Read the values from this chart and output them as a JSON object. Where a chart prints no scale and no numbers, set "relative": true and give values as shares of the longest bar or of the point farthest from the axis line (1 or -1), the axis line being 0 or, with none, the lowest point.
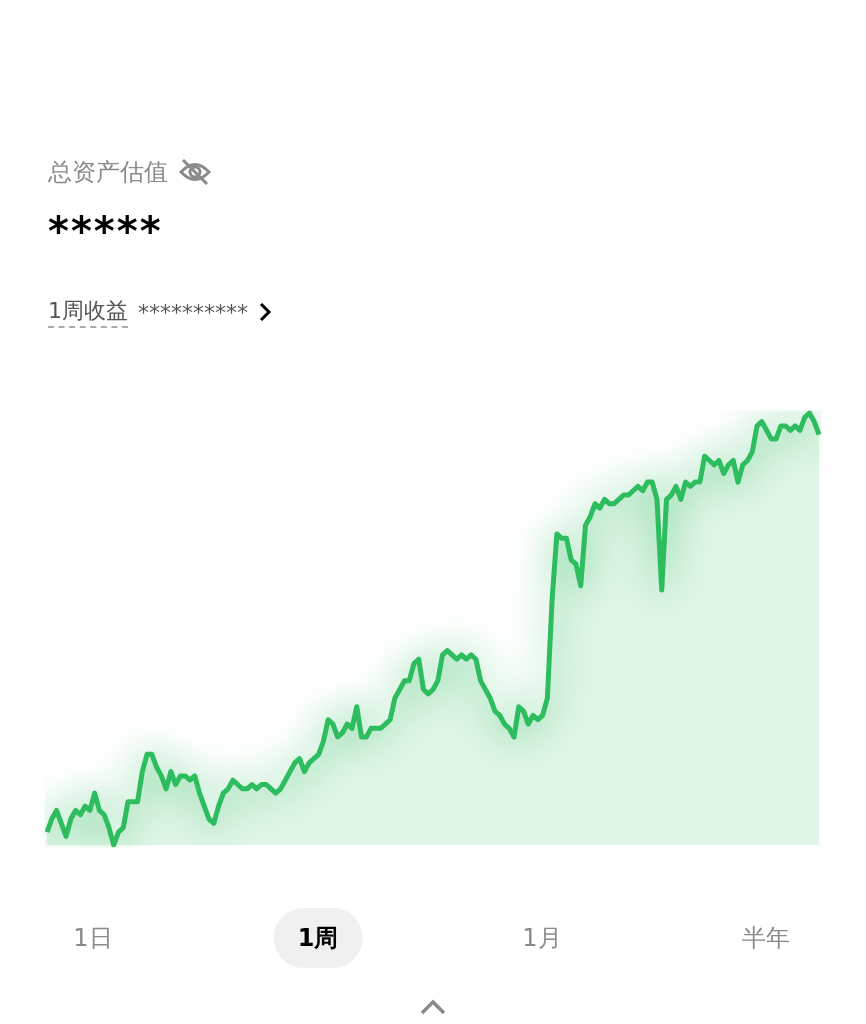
{
  "chart_data": {
    "type": "area",
    "relative": true,
    "title": "总资产估值",
    "subtitle": "*****",
    "annotations": [
      "1周收益 **********",
      "1日",
      "1周",
      "1月",
      "半年"
    ],
    "categories": [
      null,
      null,
      null,
      null,
      null,
      null,
      null,
      null,
      null,
      null,
      null,
      null,
      null,
      null,
      null,
      null,
      null,
      null,
      null,
      null,
      null,
      null,
      null,
      null,
      null,
      null,
      null,
      null,
      null,
      null,
      null,
      null,
      null,
      null,
      null,
      null,
      null,
      null,
      null,
      null,
      null,
      null,
      null,
      null,
      null,
      null,
      null,
      null,
      null,
      null,
      null,
      null,
      null,
      null,
      null,
      null,
      null,
      null,
      null,
      null,
      null,
      null,
      null,
      null,
      null,
      null,
      null,
      null,
      null,
      null,
      null,
      null,
      null,
      null,
      null,
      null,
      null,
      null,
      null,
      null,
      null,
      null,
      null,
      null,
      null,
      null,
      null,
      null,
      null,
      null,
      null,
      null,
      null,
      null,
      null,
      null,
      null,
      null,
      null,
      null,
      null,
      null,
      null,
      null,
      null,
      null,
      null,
      null,
      null,
      null,
      null,
      null,
      null,
      null,
      null,
      null,
      null,
      null,
      null,
      null,
      null,
      null,
      null,
      null,
      null,
      null,
      null,
      null,
      null,
      null,
      null,
      null,
      null,
      null,
      null,
      null,
      null,
      null,
      null,
      null,
      null,
      null,
      null,
      null,
      null,
      null,
      null,
      null,
      null,
      null,
      null,
      null,
      null,
      null,
      null,
      null,
      null,
      null,
      null,
      null,
      null,
      null,
      null
    ],
    "series": [
      {
        "color": "#2dbd5f",
        "values": [
          0.03,
          0.06,
          0.08,
          0.05,
          0.02,
          0.06,
          0.08,
          0.07,
          0.09,
          0.08,
          0.12,
          0.08,
          0.07,
          0.04,
          0,
          0.03,
          0.04,
          0.1,
          0.1,
          0.1,
          0.17,
          0.21,
          0.21,
          0.18,
          0.16,
          0.13,
          0.17,
          0.14,
          0.16,
          0.16,
          0.15,
          0.16,
          0.12,
          0.09,
          0.06,
          0.05,
          0.09,
          0.12,
          0.13,
          0.15,
          0.14,
          0.13,
          0.13,
          0.14,
          0.13,
          0.14,
          0.14,
          0.13,
          0.12,
          0.13,
          0.15,
          0.17,
          0.19,
          0.2,
          0.17,
          0.19,
          0.2,
          0.21,
          0.24,
          0.29,
          0.28,
          0.25,
          0.26,
          0.28,
          0.27,
          0.32,
          0.25,
          0.25,
          0.27,
          0.27,
          0.27,
          0.28,
          0.29,
          0.34,
          0.36,
          0.38,
          0.38,
          0.42,
          0.43,
          0.36,
          0.35,
          0.36,
          0.38,
          0.44,
          0.45,
          0.44,
          0.43,
          0.44,
          0.43,
          0.44,
          0.43,
          0.38,
          0.36,
          0.34,
          0.31,
          0.3,
          0.28,
          0.27,
          0.25,
          0.32,
          0.31,
          0.28,
          0.3,
          0.29,
          0.3,
          0.34,
          0.57,
          0.72,
          0.71,
          0.71,
          0.66,
          0.65,
          0.6,
          0.74,
          0.76,
          0.79,
          0.78,
          0.8,
          0.79,
          0.79,
          0.8,
          0.81,
          0.81,
          0.82,
          0.83,
          0.82,
          0.84,
          0.84,
          0.8,
          0.59,
          0.8,
          0.81,
          0.83,
          0.8,
          0.84,
          0.83,
          0.84,
          0.84,
          0.9,
          0.89,
          0.88,
          0.89,
          0.86,
          0.88,
          0.89,
          0.84,
          0.88,
          0.89,
          0.91,
          0.97,
          0.98,
          0.96,
          0.94,
          0.94,
          0.97,
          0.97,
          0.96,
          0.97,
          0.96,
          0.99,
          1,
          0.98,
          0.95
        ]
      }
    ]
  }
}
